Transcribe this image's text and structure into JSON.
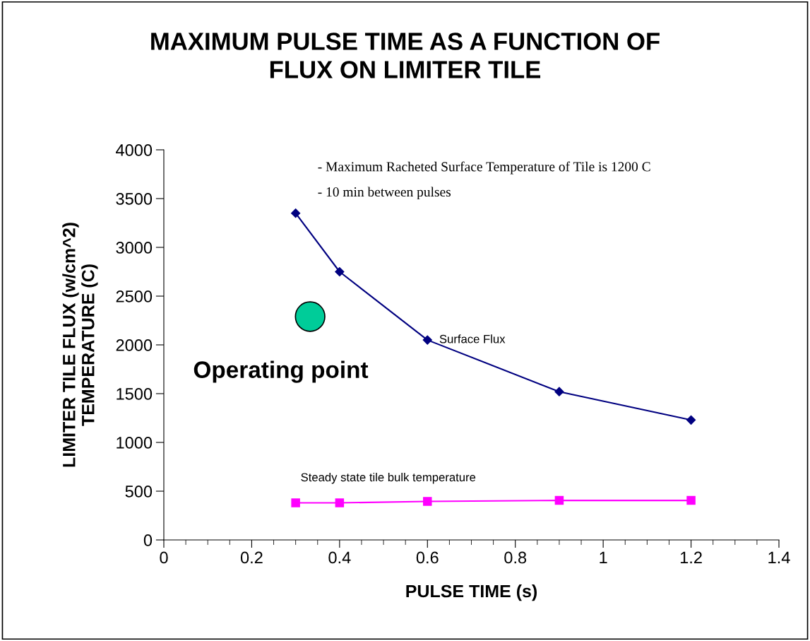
{
  "chart_data": {
    "type": "line",
    "title": "MAXIMUM PULSE TIME AS A FUNCTION OF\nFLUX ON LIMITER TILE",
    "xlabel": "PULSE TIME (s)",
    "ylabel": "LIMITER TILE FLUX (w/cm^2)\nTEMPERATURE (C)",
    "series": [
      {
        "name": "Surface Flux",
        "color": "#000080",
        "marker": "diamond",
        "x": [
          0.3,
          0.4,
          0.6,
          0.9,
          1.2
        ],
        "values": [
          3350,
          2750,
          2050,
          1520,
          1230
        ]
      },
      {
        "name": "Steady state tile bulk temperature",
        "color": "#ff00ff",
        "marker": "square",
        "x": [
          0.3,
          0.4,
          0.6,
          0.9,
          1.2
        ],
        "values": [
          380,
          380,
          395,
          405,
          405
        ]
      },
      {
        "name": "Operating point",
        "type": "scatter",
        "color": "#00cc99",
        "marker": "circle",
        "x": [
          0.333
        ],
        "values": [
          2290
        ]
      }
    ],
    "annotations": [
      "- Maximum Racheted Surface Temperature of Tile is 1200 C",
      "- 10 min between pulses"
    ],
    "xlim": [
      0,
      1.4
    ],
    "xticks": [
      0,
      0.2,
      0.4,
      0.6,
      0.8,
      1,
      1.2,
      1.4
    ],
    "ylim": [
      0,
      4000
    ],
    "yticks": [
      0,
      500,
      1000,
      1500,
      2000,
      2500,
      3000,
      3500,
      4000
    ],
    "grid": false,
    "legend": false
  }
}
